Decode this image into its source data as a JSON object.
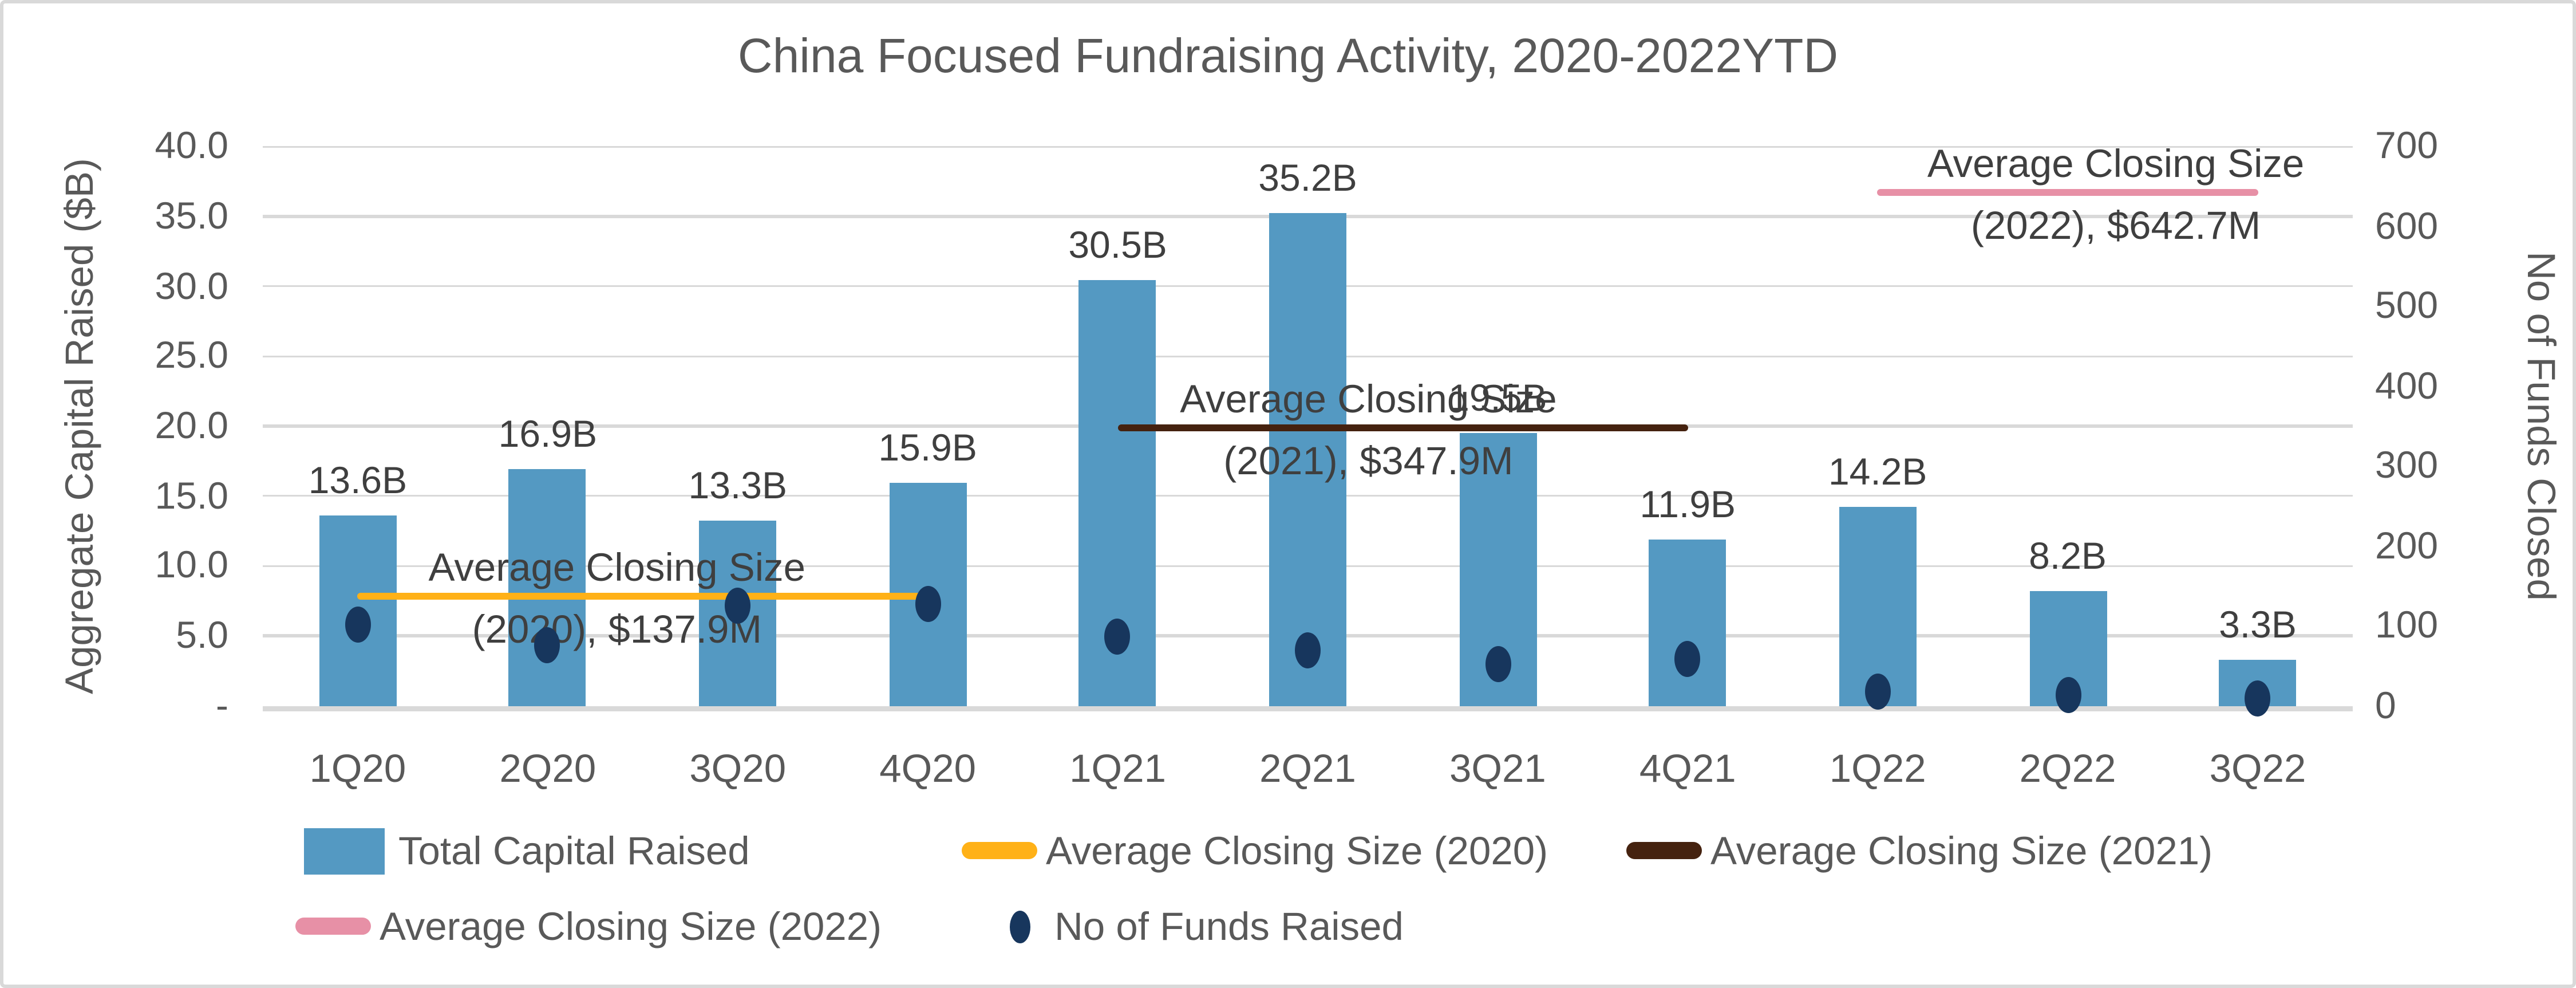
{
  "title": "China Focused Fundraising Activity, 2020-2022YTD",
  "colors": {
    "bar": "#5499C2",
    "dot": "#17365D",
    "line2020": "#FFB117",
    "line2021": "#45220F",
    "line2022": "#E790A6",
    "axis_text": "#595959",
    "label_text": "#3F3F3F",
    "gridline": "#D9D9D9"
  },
  "chart_data": {
    "type": "combo (bar + scatter + reference lines)",
    "title": "China Focused Fundraising Activity, 2020-2022YTD",
    "categories": [
      "1Q20",
      "2Q20",
      "3Q20",
      "4Q20",
      "1Q21",
      "2Q21",
      "3Q21",
      "4Q21",
      "1Q22",
      "2Q22",
      "3Q22"
    ],
    "grid": true,
    "legend_position": "bottom",
    "left_axis": {
      "title": "Aggregate Capital Raised ($B)",
      "tick_labels": [
        "40.0",
        "35.0",
        "30.0",
        "25.0",
        "20.0",
        "15.0",
        "10.0",
        "5.0",
        "-"
      ],
      "tick_values": [
        40,
        35,
        30,
        25,
        20,
        15,
        10,
        5,
        0
      ],
      "min": 0,
      "max": 40
    },
    "right_axis": {
      "title": "No of Funds Closed",
      "tick_labels": [
        "700",
        "600",
        "500",
        "400",
        "300",
        "200",
        "100",
        "0"
      ],
      "tick_values": [
        700,
        600,
        500,
        400,
        300,
        200,
        100,
        0
      ],
      "min": 0,
      "max": 700
    },
    "series": [
      {
        "name": "Total Capital Raised",
        "type": "bar",
        "axis": "left",
        "unit": "$B",
        "values": [
          13.6,
          16.9,
          13.3,
          15.9,
          30.5,
          35.2,
          19.5,
          11.9,
          14.2,
          8.2,
          3.3
        ],
        "data_labels": [
          "13.6B",
          "16.9B",
          "13.3B",
          "15.9B",
          "30.5B",
          "35.2B",
          "19.5B",
          "11.9B",
          "14.2B",
          "8.2B",
          "3.3B"
        ],
        "color_key": "bar"
      },
      {
        "name": "No of Funds Raised",
        "type": "scatter",
        "axis": "right",
        "values": [
          102,
          75,
          126,
          127,
          87,
          70,
          52,
          58,
          17,
          13,
          8
        ],
        "color_key": "dot"
      },
      {
        "name": "Average Closing Size (2020)",
        "type": "line",
        "axis": "right",
        "value": 137.9,
        "unit": "$M",
        "span": [
          "1Q20",
          "4Q20"
        ],
        "annotation_lines": [
          "Average Closing Size",
          "(2020), $137.9M"
        ],
        "color_key": "line2020"
      },
      {
        "name": "Average Closing Size (2021)",
        "type": "line",
        "axis": "right",
        "value": 347.9,
        "unit": "$M",
        "span": [
          "1Q21",
          "4Q21"
        ],
        "annotation_lines": [
          "Average Closing Size",
          "(2021), $347.9M"
        ],
        "color_key": "line2021"
      },
      {
        "name": "Average Closing Size (2022)",
        "type": "line",
        "axis": "right",
        "value": 642.7,
        "unit": "$M",
        "span": [
          "1Q22",
          "3Q22"
        ],
        "annotation_lines": [
          "Average Closing Size",
          "(2022), $642.7M"
        ],
        "color_key": "line2022"
      }
    ],
    "legend": {
      "rows": [
        [
          {
            "label": "Total Capital Raised",
            "swatch": "bar",
            "color_key": "bar"
          },
          {
            "label": "Average Closing Size (2020)",
            "swatch": "line",
            "color_key": "line2020"
          },
          {
            "label": "Average Closing Size (2021)",
            "swatch": "line",
            "color_key": "line2021"
          }
        ],
        [
          {
            "label": "Average Closing Size (2022)",
            "swatch": "line",
            "color_key": "line2022"
          },
          {
            "label": "No of Funds Raised",
            "swatch": "dot",
            "color_key": "dot"
          }
        ]
      ]
    }
  }
}
